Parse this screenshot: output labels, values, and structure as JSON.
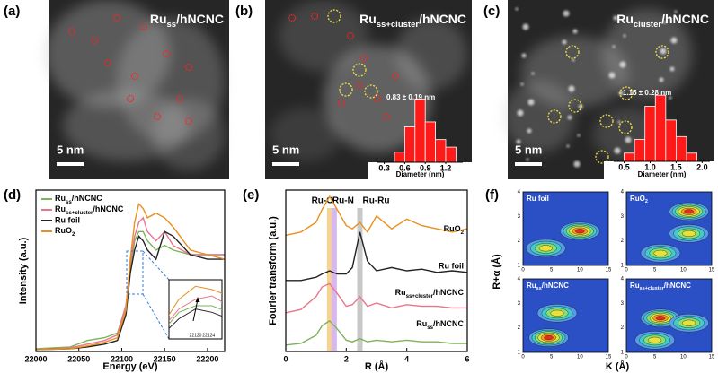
{
  "images": [
    {
      "label": "(a)",
      "title": {
        "base": "Ru",
        "sub": "ss",
        "rest": "/hNCNC"
      },
      "scale_bar": "5 nm"
    },
    {
      "label": "(b)",
      "title": {
        "base": "Ru",
        "sub": "ss+cluster",
        "rest": "/hNCNC"
      },
      "scale_bar": "5 nm"
    },
    {
      "label": "(c)",
      "title": {
        "base": "Ru",
        "sub": "cluster",
        "rest": "/hNCNC"
      },
      "scale_bar": "5 nm"
    }
  ],
  "chart_data": [
    {
      "type": "histogram",
      "annotation": "0.83 ± 0.19 nm",
      "xlabel": "Diameter (nm)",
      "color": "#ff1a1a",
      "bins": [
        0.45,
        0.6,
        0.75,
        0.9,
        1.05,
        1.2,
        1.35
      ],
      "values": [
        4,
        14,
        25,
        16,
        9,
        6
      ],
      "xlim": [
        0.2,
        1.45
      ],
      "ylim": [
        0,
        27
      ],
      "xticks": [
        0.3,
        0.6,
        0.9,
        1.2
      ]
    },
    {
      "type": "histogram",
      "annotation": "1.15 ± 0.28 nm",
      "xlabel": "Diameter (nm)",
      "color": "#ff1a1a",
      "bins": [
        0.5,
        0.7,
        0.9,
        1.1,
        1.3,
        1.5,
        1.7,
        1.9
      ],
      "values": [
        3,
        8,
        20,
        24,
        15,
        9,
        3
      ],
      "xlim": [
        0.3,
        2.15
      ],
      "ylim": [
        0,
        26
      ],
      "xticks": [
        0.5,
        {
          "value": 1,
          "label": "1.0"
        },
        1.5,
        {
          "value": 2,
          "label": "2.0"
        }
      ]
    },
    {
      "type": "line",
      "panel_label": "(d)",
      "xlabel": "Energy (eV)",
      "ylabel": "Intensity (a.u.)",
      "x": [
        22000,
        22040,
        22060,
        22080,
        22095,
        22105,
        22110,
        22115,
        22120,
        22125,
        22130,
        22140,
        22150,
        22160,
        22180,
        22200,
        22220
      ],
      "xlim": [
        22000,
        22220
      ],
      "ylim": [
        0,
        1.75
      ],
      "xticks": [
        22000,
        22050,
        22100,
        22150,
        22200
      ],
      "series": [
        {
          "name": {
            "base": "Ru",
            "sub": "ss",
            "rest": "/hNCNC"
          },
          "color": "#7cb35a",
          "values": [
            0.03,
            0.05,
            0.12,
            0.15,
            0.2,
            0.5,
            0.9,
            1.2,
            1.3,
            1.3,
            1.2,
            1.1,
            1.15,
            1.1,
            1.05,
            1.05,
            1.05
          ]
        },
        {
          "name": {
            "base": "Ru",
            "sub": "ss+cluster",
            "rest": "/hNCNC"
          },
          "color": "#e8758a",
          "values": [
            0.02,
            0.04,
            0.08,
            0.12,
            0.18,
            0.5,
            0.95,
            1.25,
            1.4,
            1.45,
            1.3,
            1.2,
            1.3,
            1.15,
            1.05,
            1.05,
            1.05
          ]
        },
        {
          "name": "Ru foil",
          "color": "#222222",
          "values": [
            0.02,
            0.03,
            0.05,
            0.08,
            0.12,
            0.4,
            0.85,
            1.1,
            1.25,
            1.2,
            1.1,
            1.0,
            1.3,
            1.25,
            1.05,
            1.0,
            1.0
          ]
        },
        {
          "name": {
            "base": "RuO",
            "sub": "2"
          },
          "color": "#e8901c",
          "values": [
            0.02,
            0.03,
            0.06,
            0.1,
            0.15,
            0.45,
            1.0,
            1.4,
            1.6,
            1.55,
            1.45,
            1.5,
            1.45,
            1.35,
            1.1,
            1.05,
            1.0
          ]
        }
      ],
      "inset": {
        "xlim": [
          22112,
          22128
        ],
        "ylim": [
          0.9,
          1.7
        ],
        "xticks": [
          22120,
          22124
        ]
      }
    },
    {
      "type": "line",
      "panel_label": "(e)",
      "xlabel": "R (Å)",
      "ylabel": "Fourier transform (a.u.)",
      "x": [
        0,
        0.5,
        1,
        1.2,
        1.45,
        1.7,
        2,
        2.2,
        2.45,
        2.7,
        3,
        3.5,
        4,
        4.5,
        5,
        5.5,
        6
      ],
      "xlim": [
        0,
        6
      ],
      "ylim": [
        0,
        5
      ],
      "xticks": [
        0,
        2,
        4,
        6
      ],
      "bands": [
        {
          "label": "Ru-O",
          "x": 1.45,
          "color": "#f2c46d"
        },
        {
          "label": "Ru-N",
          "x": 1.6,
          "color": "#c9a0e8"
        },
        {
          "label": "Ru-Ru",
          "x": 2.45,
          "color": "#b5b5b5"
        }
      ],
      "series": [
        {
          "name": {
            "base": "Ru",
            "sub": "ss",
            "rest": "/hNCNC"
          },
          "color": "#7cb35a",
          "values": [
            0.2,
            0.25,
            0.5,
            0.8,
            0.95,
            0.7,
            0.35,
            0.3,
            0.4,
            0.3,
            0.35,
            0.3,
            0.35,
            0.3,
            0.3,
            0.25,
            0.25
          ]
        },
        {
          "name": {
            "base": "Ru",
            "sub": "ss+cluster",
            "rest": "/hNCNC"
          },
          "color": "#e8758a",
          "values": [
            1.2,
            1.3,
            1.7,
            2.0,
            2.1,
            1.8,
            1.4,
            1.45,
            1.7,
            1.4,
            1.5,
            1.35,
            1.45,
            1.4,
            1.4,
            1.35,
            1.35
          ]
        },
        {
          "name": "Ru foil",
          "color": "#222222",
          "values": [
            2.2,
            2.2,
            2.3,
            2.4,
            2.5,
            2.4,
            2.4,
            2.6,
            3.7,
            2.8,
            2.5,
            2.6,
            2.5,
            2.55,
            2.45,
            2.5,
            2.45
          ]
        },
        {
          "name": {
            "base": "RuO",
            "sub": "2"
          },
          "color": "#e8901c",
          "values": [
            3.6,
            3.7,
            4.0,
            4.4,
            4.8,
            4.4,
            3.9,
            3.8,
            4.0,
            3.7,
            4.2,
            3.8,
            4.1,
            3.9,
            3.8,
            3.7,
            3.8
          ]
        }
      ]
    },
    {
      "type": "contour",
      "panel_label": "(f)",
      "xlabel": "K (Å)",
      "ylabel": "R+α (Å)",
      "xlim": [
        0,
        15
      ],
      "ylim": [
        1,
        4
      ],
      "xticks": [
        0,
        5,
        10,
        15
      ],
      "yticks": [
        1,
        2,
        3,
        4
      ],
      "subplots": [
        {
          "title": "Ru foil",
          "peaks": [
            {
              "k": 10,
              "r": 2.4
            },
            {
              "k": 4,
              "r": 1.7
            }
          ]
        },
        {
          "title": {
            "base": "RuO",
            "sub": "2"
          },
          "peaks": [
            {
              "k": 11,
              "r": 3.2
            },
            {
              "k": 11,
              "r": 2.3
            },
            {
              "k": 6,
              "r": 1.5
            }
          ]
        },
        {
          "title": {
            "base": "Ru",
            "sub": "ss",
            "rest": "/hNCNC"
          },
          "peaks": [
            {
              "k": 4.5,
              "r": 1.6
            },
            {
              "k": 6,
              "r": 2.6
            }
          ]
        },
        {
          "title": {
            "base": "Ru",
            "sub": "ss+cluster",
            "rest": "/hNCNC"
          },
          "peaks": [
            {
              "k": 6,
              "r": 2.4
            },
            {
              "k": 5,
              "r": 1.5
            },
            {
              "k": 11,
              "r": 2.2
            }
          ]
        }
      ]
    }
  ]
}
